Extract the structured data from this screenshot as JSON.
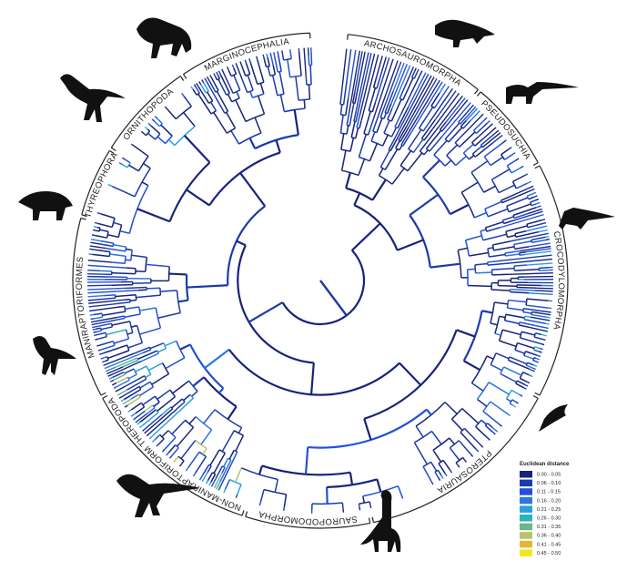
{
  "clades": [
    "ARCHOSAUROMORPHA",
    "PSEUDOSUCHIA",
    "CROCODYLOMORPHA",
    "PTEROSAURIA",
    "SAUROPODOMORPHA",
    "NON-MANIRAPTORIFORM THEROPODA",
    "MANIRAPTORIFORMES",
    "THYREOPHORA",
    "ORNITHOPODA",
    "MARGINOCEPHALIA"
  ],
  "legend": {
    "title": "Euclidean distance",
    "items": [
      {
        "label": "0.00 - 0.05",
        "color": "#17237a"
      },
      {
        "label": "0.06 - 0.10",
        "color": "#1c3aa9"
      },
      {
        "label": "0.11 - 0.15",
        "color": "#2350d6"
      },
      {
        "label": "0.16 - 0.20",
        "color": "#2a76e3"
      },
      {
        "label": "0.21 - 0.25",
        "color": "#2aa0dc"
      },
      {
        "label": "0.26 - 0.30",
        "color": "#2ab3b8"
      },
      {
        "label": "0.31 - 0.35",
        "color": "#6db58a"
      },
      {
        "label": "0.36 - 0.40",
        "color": "#b7c46a"
      },
      {
        "label": "0.41 - 0.45",
        "color": "#e3b63a"
      },
      {
        "label": "0.45 - 0.50",
        "color": "#f3e61f"
      }
    ]
  }
}
